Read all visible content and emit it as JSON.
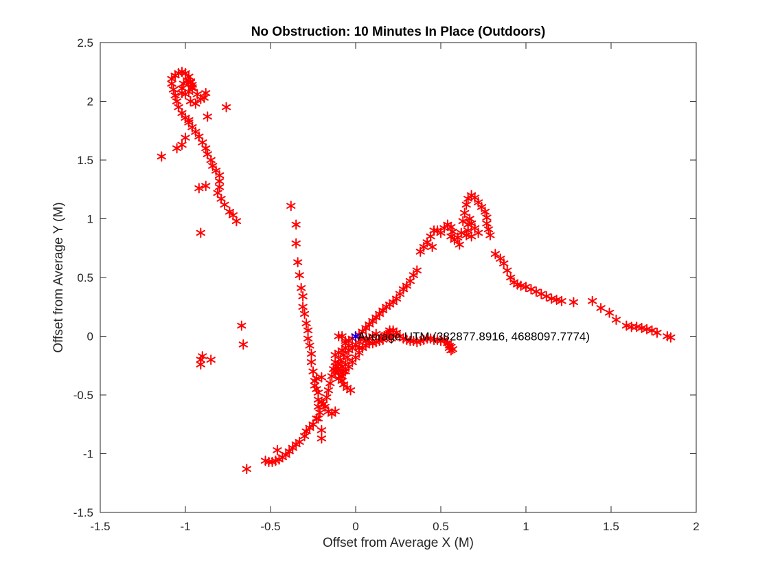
{
  "chart_data": {
    "type": "scatter",
    "title": "No Obstruction: 10 Minutes In Place (Outdoors)",
    "xlabel": "Offset from Average X (M)",
    "ylabel": "Offset from Average Y (M)",
    "xlim": [
      -1.5,
      2
    ],
    "ylim": [
      -1.5,
      2.5
    ],
    "xticks": [
      -1.5,
      -1,
      -0.5,
      0,
      0.5,
      1,
      1.5,
      2
    ],
    "yticks": [
      -1.5,
      -1,
      -0.5,
      0,
      0.5,
      1,
      1.5,
      2,
      2.5
    ],
    "xtick_labels": [
      "-1.5",
      "-1",
      "-0.5",
      "0",
      "0.5",
      "1",
      "1.5",
      "2"
    ],
    "ytick_labels": [
      "-1.5",
      "-1",
      "-0.5",
      "0",
      "0.5",
      "1",
      "1.5",
      "2",
      "2.5"
    ],
    "grid": false,
    "marker": "*",
    "colors": {
      "points": "#ff0000",
      "average": "#0000ff",
      "axes": "#262626"
    },
    "annotation": {
      "text": "Average UTM (382877.8916, 4688097.7774)",
      "x": 0.0,
      "y": 0.0
    },
    "average_point": {
      "x": 0.0,
      "y": 0.0
    },
    "series": [
      {
        "points": [
          [
            -1.14,
            1.53
          ],
          [
            -1.05,
            1.6
          ],
          [
            -1.02,
            1.63
          ],
          [
            -1.0,
            1.69
          ],
          [
            -1.0,
            1.86
          ],
          [
            -0.98,
            1.84
          ],
          [
            -0.92,
            1.26
          ],
          [
            -0.88,
            1.28
          ],
          [
            -0.91,
            0.88
          ],
          [
            -0.76,
            1.95
          ],
          [
            -0.87,
            1.87
          ],
          [
            -0.89,
            2.03
          ],
          [
            -0.88,
            2.07
          ],
          [
            -0.97,
            2.0
          ],
          [
            -0.94,
            1.98
          ],
          [
            -0.7,
            0.98
          ],
          [
            -0.72,
            1.03
          ],
          [
            -0.74,
            1.06
          ],
          [
            -0.77,
            1.12
          ],
          [
            -0.79,
            1.17
          ],
          [
            -0.81,
            1.22
          ],
          [
            -0.8,
            1.27
          ],
          [
            -0.8,
            1.32
          ],
          [
            -0.8,
            1.37
          ],
          [
            -0.82,
            1.41
          ],
          [
            -0.84,
            1.45
          ],
          [
            -0.85,
            1.5
          ],
          [
            -0.87,
            1.55
          ],
          [
            -0.88,
            1.6
          ],
          [
            -0.9,
            1.65
          ],
          [
            -0.92,
            1.7
          ],
          [
            -0.94,
            1.74
          ],
          [
            -0.96,
            1.78
          ],
          [
            -0.98,
            1.82
          ],
          [
            -1.0,
            1.86
          ],
          [
            -1.02,
            1.9
          ],
          [
            -1.04,
            1.95
          ],
          [
            -1.05,
            2.0
          ],
          [
            -1.06,
            2.05
          ],
          [
            -1.07,
            2.1
          ],
          [
            -1.08,
            2.15
          ],
          [
            -1.08,
            2.19
          ],
          [
            -1.06,
            2.22
          ],
          [
            -1.04,
            2.24
          ],
          [
            -1.02,
            2.25
          ],
          [
            -1.0,
            2.24
          ],
          [
            -0.98,
            2.21
          ],
          [
            -0.97,
            2.17
          ],
          [
            -0.96,
            2.14
          ],
          [
            -0.96,
            2.11
          ],
          [
            -0.98,
            2.08
          ],
          [
            -1.0,
            2.06
          ],
          [
            -1.02,
            2.07
          ],
          [
            -1.02,
            2.11
          ],
          [
            -1.01,
            2.15
          ],
          [
            -0.99,
            2.18
          ],
          [
            -0.97,
            2.16
          ],
          [
            -0.96,
            2.12
          ],
          [
            -0.93,
            2.06
          ],
          [
            -0.91,
            2.02
          ],
          [
            -0.67,
            0.09
          ],
          [
            -0.66,
            -0.07
          ],
          [
            -0.9,
            -0.17
          ],
          [
            -0.91,
            -0.2
          ],
          [
            -0.91,
            -0.24
          ],
          [
            -0.85,
            -0.2
          ],
          [
            -0.64,
            -1.13
          ],
          [
            -0.38,
            1.11
          ],
          [
            -0.35,
            0.95
          ],
          [
            -0.35,
            0.79
          ],
          [
            -0.34,
            0.63
          ],
          [
            -0.33,
            0.52
          ],
          [
            -0.32,
            0.41
          ],
          [
            -0.31,
            0.34
          ],
          [
            -0.31,
            0.25
          ],
          [
            -0.3,
            0.19
          ],
          [
            -0.29,
            0.11
          ],
          [
            -0.28,
            0.05
          ],
          [
            -0.28,
            -0.02
          ],
          [
            -0.27,
            -0.08
          ],
          [
            -0.26,
            -0.15
          ],
          [
            -0.26,
            -0.22
          ],
          [
            -0.25,
            -0.3
          ],
          [
            -0.24,
            -0.38
          ],
          [
            -0.23,
            -0.45
          ],
          [
            -0.22,
            -0.54
          ],
          [
            -0.22,
            -0.6
          ],
          [
            -0.22,
            -0.7
          ],
          [
            -0.2,
            -0.8
          ],
          [
            -0.2,
            -0.87
          ],
          [
            -0.53,
            -1.06
          ],
          [
            -0.51,
            -1.07
          ],
          [
            -0.49,
            -1.07
          ],
          [
            -0.47,
            -1.06
          ],
          [
            -0.45,
            -1.05
          ],
          [
            -0.43,
            -1.03
          ],
          [
            -0.41,
            -1.01
          ],
          [
            -0.39,
            -0.98
          ],
          [
            -0.37,
            -0.95
          ],
          [
            -0.35,
            -0.92
          ],
          [
            -0.46,
            -0.97
          ],
          [
            -0.33,
            -0.9
          ],
          [
            -0.3,
            -0.85
          ],
          [
            -0.29,
            -0.81
          ],
          [
            -0.27,
            -0.78
          ],
          [
            -0.25,
            -0.75
          ],
          [
            -0.23,
            -0.7
          ],
          [
            -0.21,
            -0.65
          ],
          [
            -0.19,
            -0.58
          ],
          [
            -0.17,
            -0.52
          ],
          [
            -0.16,
            -0.46
          ],
          [
            -0.15,
            -0.4
          ],
          [
            -0.14,
            -0.34
          ],
          [
            -0.13,
            -0.28
          ],
          [
            -0.12,
            -0.64
          ],
          [
            -0.14,
            -0.66
          ],
          [
            -0.16,
            -0.64
          ],
          [
            -0.18,
            -0.6
          ],
          [
            -0.2,
            -0.56
          ],
          [
            -0.22,
            -0.48
          ],
          [
            -0.24,
            -0.42
          ],
          [
            -0.23,
            -0.36
          ],
          [
            -0.2,
            -0.35
          ],
          [
            -0.12,
            -0.22
          ],
          [
            -0.11,
            -0.26
          ],
          [
            -0.1,
            -0.3
          ],
          [
            -0.09,
            -0.34
          ],
          [
            -0.08,
            -0.38
          ],
          [
            -0.07,
            -0.41
          ],
          [
            -0.05,
            -0.44
          ],
          [
            -0.03,
            -0.46
          ],
          [
            -0.07,
            -0.3
          ],
          [
            -0.06,
            -0.24
          ],
          [
            -0.05,
            -0.18
          ],
          [
            -0.04,
            -0.12
          ],
          [
            -0.07,
            -0.16
          ],
          [
            -0.09,
            -0.2
          ],
          [
            -0.1,
            -0.23
          ],
          [
            -0.11,
            -0.28
          ],
          [
            -0.08,
            -0.26
          ],
          [
            -0.06,
            -0.06
          ],
          [
            -0.04,
            -0.04
          ],
          [
            -0.02,
            -0.02
          ],
          [
            0.02,
            0.01
          ],
          [
            0.04,
            0.04
          ],
          [
            0.06,
            0.07
          ],
          [
            0.08,
            0.1
          ],
          [
            0.1,
            0.13
          ],
          [
            0.12,
            0.16
          ],
          [
            0.14,
            0.19
          ],
          [
            0.16,
            0.22
          ],
          [
            0.18,
            0.25
          ],
          [
            0.2,
            0.27
          ],
          [
            0.22,
            0.29
          ],
          [
            0.24,
            0.32
          ],
          [
            0.26,
            0.36
          ],
          [
            0.28,
            0.4
          ],
          [
            0.3,
            0.43
          ],
          [
            0.32,
            0.47
          ],
          [
            0.34,
            0.52
          ],
          [
            0.36,
            0.56
          ],
          [
            0.38,
            0.72
          ],
          [
            0.4,
            0.76
          ],
          [
            0.42,
            0.8
          ],
          [
            0.44,
            0.85
          ],
          [
            0.46,
            0.9
          ],
          [
            0.48,
            0.9
          ],
          [
            0.5,
            0.88
          ],
          [
            0.52,
            0.92
          ],
          [
            0.54,
            0.95
          ],
          [
            0.56,
            0.93
          ],
          [
            0.57,
            0.89
          ],
          [
            0.56,
            0.85
          ],
          [
            0.45,
            0.76
          ],
          [
            0.58,
            0.82
          ],
          [
            0.6,
            0.84
          ],
          [
            0.61,
            0.78
          ],
          [
            0.62,
            0.88
          ],
          [
            0.63,
            0.98
          ],
          [
            0.64,
            1.05
          ],
          [
            0.65,
            1.12
          ],
          [
            0.66,
            1.17
          ],
          [
            0.68,
            1.2
          ],
          [
            0.7,
            1.18
          ],
          [
            0.72,
            1.14
          ],
          [
            0.74,
            1.1
          ],
          [
            0.76,
            1.06
          ],
          [
            0.77,
            1.01
          ],
          [
            0.77,
            0.96
          ],
          [
            0.78,
            0.91
          ],
          [
            0.79,
            0.86
          ],
          [
            0.72,
            0.88
          ],
          [
            0.7,
            0.92
          ],
          [
            0.68,
            0.96
          ],
          [
            0.67,
            1.0
          ],
          [
            0.66,
            0.95
          ],
          [
            0.66,
            0.9
          ],
          [
            0.65,
            0.86
          ],
          [
            0.68,
            0.85
          ],
          [
            0.82,
            0.7
          ],
          [
            0.85,
            0.66
          ],
          [
            0.87,
            0.62
          ],
          [
            0.89,
            0.56
          ],
          [
            0.91,
            0.5
          ],
          [
            0.93,
            0.46
          ],
          [
            0.95,
            0.44
          ],
          [
            0.97,
            0.43
          ],
          [
            1.0,
            0.42
          ],
          [
            1.03,
            0.4
          ],
          [
            1.06,
            0.38
          ],
          [
            1.09,
            0.36
          ],
          [
            1.12,
            0.34
          ],
          [
            1.15,
            0.32
          ],
          [
            1.18,
            0.31
          ],
          [
            1.21,
            0.3
          ],
          [
            1.28,
            0.29
          ],
          [
            1.39,
            0.3
          ],
          [
            1.44,
            0.24
          ],
          [
            1.49,
            0.2
          ],
          [
            1.53,
            0.14
          ],
          [
            1.59,
            0.09
          ],
          [
            1.62,
            0.08
          ],
          [
            1.65,
            0.08
          ],
          [
            1.68,
            0.07
          ],
          [
            1.71,
            0.06
          ],
          [
            1.74,
            0.05
          ],
          [
            1.77,
            0.03
          ],
          [
            1.83,
            0.0
          ],
          [
            1.85,
            -0.01
          ],
          [
            0.03,
            -0.03
          ],
          [
            0.06,
            -0.04
          ],
          [
            0.08,
            -0.05
          ],
          [
            0.1,
            -0.06
          ],
          [
            0.12,
            -0.05
          ],
          [
            0.14,
            -0.04
          ],
          [
            0.16,
            -0.03
          ],
          [
            0.18,
            0.01
          ],
          [
            0.2,
            0.03
          ],
          [
            0.22,
            0.05
          ],
          [
            0.24,
            0.03
          ],
          [
            0.26,
            0.0
          ],
          [
            0.28,
            -0.02
          ],
          [
            0.3,
            -0.03
          ],
          [
            0.32,
            -0.04
          ],
          [
            0.34,
            -0.04
          ],
          [
            0.36,
            -0.05
          ],
          [
            0.38,
            -0.04
          ],
          [
            0.4,
            -0.03
          ],
          [
            0.42,
            -0.02
          ],
          [
            0.44,
            -0.02
          ],
          [
            0.46,
            -0.03
          ],
          [
            0.48,
            -0.03
          ],
          [
            0.5,
            -0.04
          ],
          [
            0.52,
            -0.03
          ],
          [
            0.54,
            -0.06
          ],
          [
            0.55,
            -0.08
          ],
          [
            0.56,
            -0.09
          ],
          [
            0.57,
            -0.11
          ],
          [
            0.56,
            -0.12
          ],
          [
            0.55,
            -0.1
          ],
          [
            0.2,
            0.05
          ],
          [
            0.19,
            0.02
          ],
          [
            0.21,
            -0.02
          ],
          [
            0.22,
            0.01
          ],
          [
            0.17,
            0.0
          ],
          [
            0.15,
            -0.01
          ],
          [
            0.12,
            0.02
          ],
          [
            0.1,
            0.0
          ],
          [
            0.08,
            -0.02
          ],
          [
            0.06,
            -0.08
          ],
          [
            0.04,
            -0.1
          ],
          [
            0.02,
            -0.14
          ],
          [
            0.0,
            -0.18
          ],
          [
            -0.02,
            -0.22
          ],
          [
            -0.04,
            -0.26
          ],
          [
            -0.06,
            -0.3
          ],
          [
            -0.08,
            -0.34
          ],
          [
            -0.1,
            -0.36
          ],
          [
            -0.12,
            -0.3
          ],
          [
            -0.1,
            0.0
          ],
          [
            -0.08,
            0.0
          ],
          [
            -0.12,
            -0.16
          ],
          [
            -0.1,
            -0.14
          ],
          [
            -0.08,
            -0.12
          ],
          [
            -0.06,
            -0.1
          ],
          [
            -0.04,
            -0.08
          ],
          [
            -0.02,
            -0.1
          ],
          [
            -0.06,
            -0.04
          ],
          [
            0.0,
            -0.07
          ],
          [
            0.02,
            -0.1
          ]
        ]
      }
    ]
  }
}
